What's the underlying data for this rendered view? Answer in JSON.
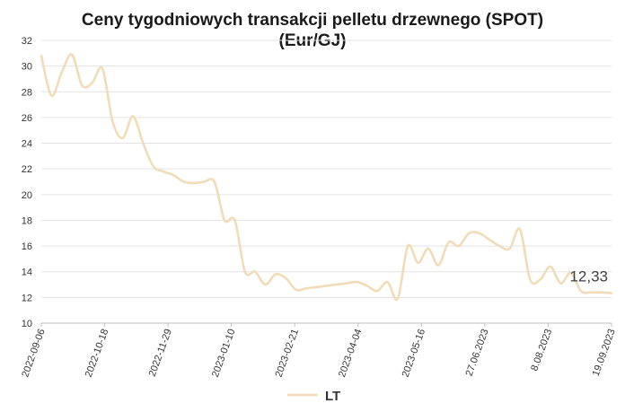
{
  "chart_data": {
    "type": "line",
    "title": "Ceny tygodniowych transakcji pelletu drzewnego (SPOT)",
    "subtitle": "(Eur/GJ)",
    "xlabel": "",
    "ylabel": "",
    "ylim": [
      10,
      32
    ],
    "yticks": [
      "10",
      "12",
      "14",
      "16",
      "18",
      "20",
      "22",
      "24",
      "26",
      "28",
      "30",
      "32"
    ],
    "grid": true,
    "legend_position": "bottom",
    "x_tick_labels": [
      "2022-09-06",
      "2022-10-18",
      "2022-11-29",
      "2023-01-10",
      "2023-02-21",
      "2023-04-04",
      "2023-05-16",
      "27.06.2023",
      "8.08.2023",
      "19.09.2023"
    ],
    "end_label": "12,33",
    "series": [
      {
        "name": "LT",
        "color": "#f2dcb8",
        "values": [
          30.8,
          27.7,
          29.5,
          30.9,
          28.5,
          28.7,
          29.8,
          25.7,
          24.4,
          26.1,
          24.0,
          22.2,
          21.8,
          21.5,
          21.0,
          20.9,
          21.0,
          21.0,
          18.0,
          18.0,
          14.0,
          14.0,
          13.0,
          13.8,
          13.5,
          12.6,
          12.7,
          12.8,
          12.9,
          13.0,
          13.1,
          13.2,
          12.9,
          12.5,
          13.2,
          11.9,
          16.0,
          14.7,
          15.8,
          14.5,
          16.3,
          16.0,
          17.0,
          17.0,
          16.5,
          16.0,
          15.8,
          17.3,
          13.4,
          13.4,
          14.4,
          13.1,
          13.9,
          12.5,
          12.4,
          12.4,
          12.33
        ]
      }
    ]
  }
}
